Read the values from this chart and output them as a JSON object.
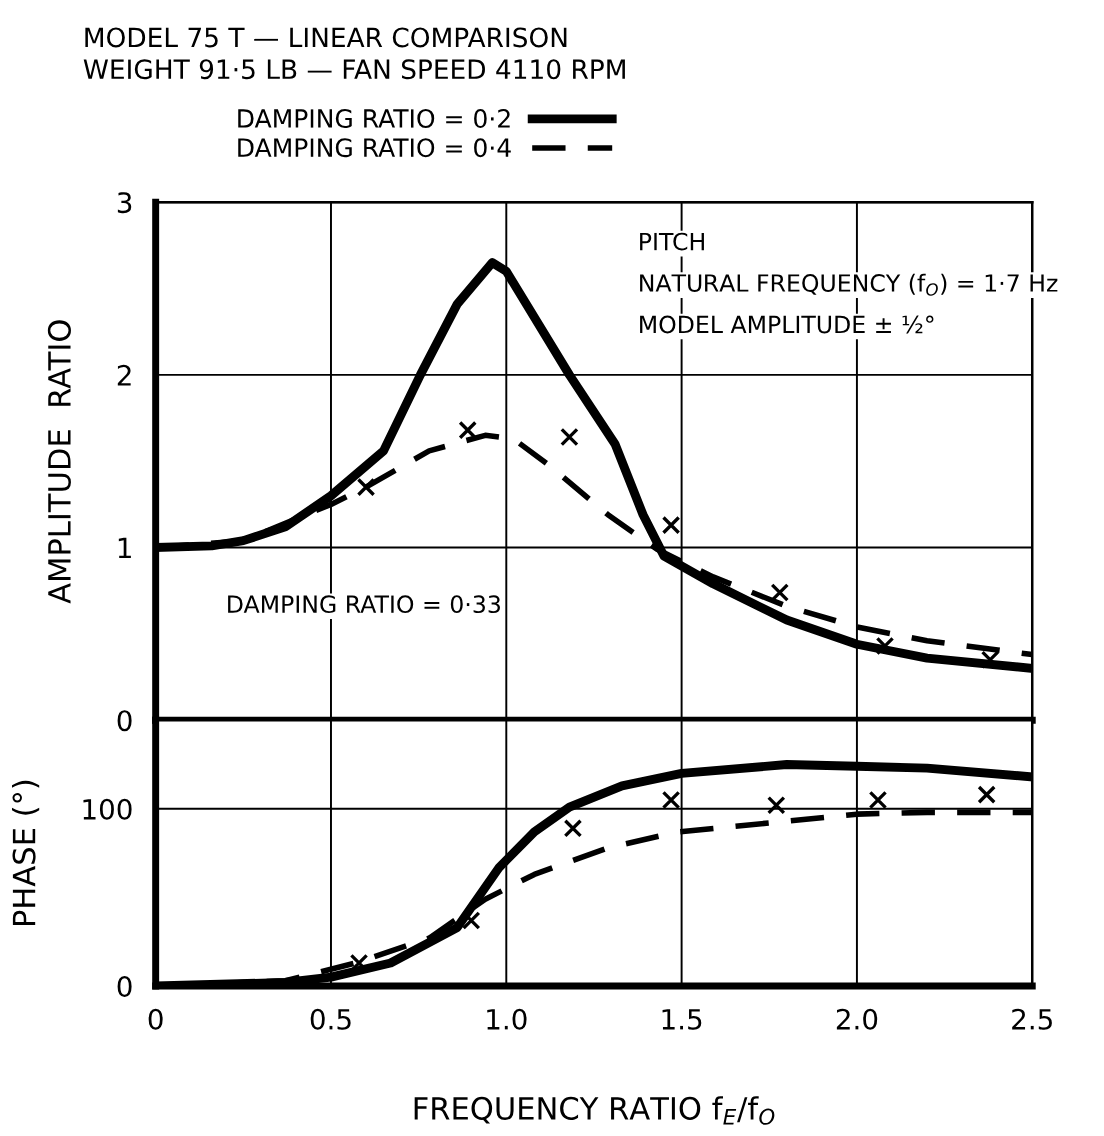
{
  "chart_data": [
    {
      "type": "line",
      "title": "MODEL 75 T — LINEAR COMPARISON",
      "subtitle": "WEIGHT 91·5 LB — FAN SPEED 4110 RPM",
      "ylabel": "AMPLITUDE  RATIO",
      "annotations": [
        "PITCH",
        "NATURAL FREQUENCY (f$_{O}$) = 1·7 Hz",
        "MODEL AMPLITUDE ± ½°",
        "DAMPING RATIO = 0·33"
      ],
      "xlim": [
        0,
        2.5
      ],
      "xticks": [
        0,
        0.5,
        1.0,
        1.5,
        2.0,
        2.5
      ],
      "ylim": [
        0,
        3
      ],
      "yticks": [
        0,
        1,
        2,
        3
      ],
      "tick_labels": "y",
      "grid": true,
      "legend": "top left",
      "series": [
        {
          "name": "DAMPING RATIO = 0·2",
          "color": "#000000",
          "line_style": "solid",
          "x": [
            0,
            0.16,
            0.25,
            0.37,
            0.5,
            0.65,
            0.755,
            0.86,
            0.96,
            1.0,
            1.18,
            1.31,
            1.39,
            1.45,
            1.59,
            1.8,
            2.0,
            2.2,
            2.5
          ],
          "values": [
            1.0,
            1.01,
            1.04,
            1.12,
            1.3,
            1.56,
            2.0,
            2.41,
            2.65,
            2.6,
            2.0,
            1.6,
            1.19,
            0.95,
            0.79,
            0.58,
            0.44,
            0.36,
            0.3
          ]
        },
        {
          "name": "DAMPING RATIO = 0·4",
          "color": "#000000",
          "line_style": "dashed",
          "x": [
            0,
            0.25,
            0.5,
            0.6,
            0.78,
            0.94,
            1.02,
            1.12,
            1.29,
            1.43,
            1.59,
            1.8,
            2.0,
            2.2,
            2.5
          ],
          "values": [
            1.0,
            1.04,
            1.25,
            1.35,
            1.56,
            1.65,
            1.63,
            1.48,
            1.19,
            0.99,
            0.83,
            0.66,
            0.54,
            0.46,
            0.38
          ]
        },
        {
          "type": "scatter",
          "marker": "cross",
          "color": "#000000",
          "x": [
            0.6,
            0.89,
            1.18,
            1.47,
            1.78,
            2.08,
            2.38
          ],
          "values": [
            1.35,
            1.68,
            1.64,
            1.13,
            0.74,
            0.43,
            0.35
          ]
        }
      ]
    },
    {
      "type": "line",
      "xlabel": "FREQUENCY RATIO f$_{E}$/f$_{O}$",
      "ylabel": "PHASE (°)",
      "xlim": [
        0,
        2.5
      ],
      "xticks": [
        0,
        0.5,
        {
          "value": 1,
          "label": "1.0"
        },
        1.5,
        {
          "value": 2,
          "label": "2.0"
        },
        2.5
      ],
      "ylim": [
        0,
        150
      ],
      "yticks": [
        0,
        100
      ],
      "grid": true,
      "series": [
        {
          "color": "#000000",
          "line_style": "solid",
          "x": [
            0,
            0.37,
            0.5,
            0.67,
            0.86,
            0.98,
            1.08,
            1.18,
            1.33,
            1.5,
            1.8,
            2.0,
            2.2,
            2.5
          ],
          "values": [
            0,
            2,
            5,
            13,
            33,
            67,
            87,
            101,
            113,
            120,
            125,
            124,
            123,
            118
          ]
        },
        {
          "color": "#000000",
          "line_style": "dashed",
          "x": [
            0,
            0.37,
            0.57,
            0.78,
            0.94,
            1.08,
            1.29,
            1.49,
            1.8,
            2.0,
            2.2,
            2.5
          ],
          "values": [
            0,
            3,
            13,
            27,
            49,
            63,
            78,
            87,
            93,
            97,
            98,
            98
          ]
        },
        {
          "type": "scatter",
          "marker": "cross",
          "color": "#000000",
          "x": [
            0.58,
            0.9,
            1.19,
            1.47,
            1.77,
            2.06,
            2.37
          ],
          "values": [
            13,
            37,
            89,
            105,
            102,
            105,
            108
          ]
        }
      ]
    }
  ]
}
